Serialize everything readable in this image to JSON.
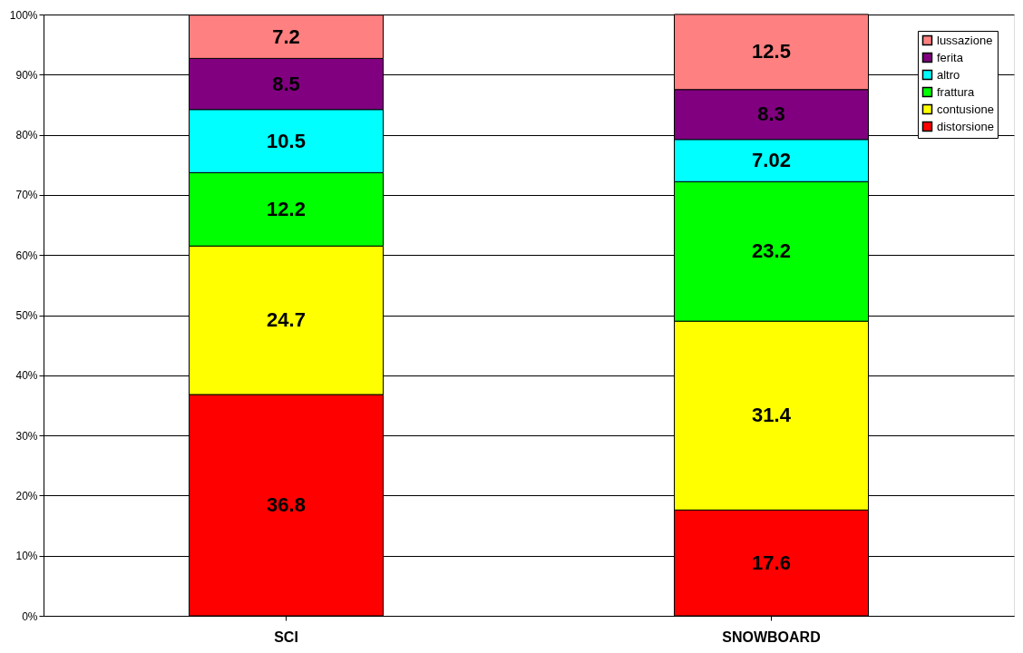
{
  "chart_data": {
    "type": "bar",
    "stacked": true,
    "categories": [
      "SCI",
      "SNOWBOARD"
    ],
    "series": [
      {
        "name": "distorsione",
        "color": "#ff0000",
        "values": [
          36.8,
          17.6
        ]
      },
      {
        "name": "contusione",
        "color": "#ffff00",
        "values": [
          24.7,
          31.4
        ]
      },
      {
        "name": "frattura",
        "color": "#00ff00",
        "values": [
          12.2,
          23.2
        ]
      },
      {
        "name": "altro",
        "color": "#00ffff",
        "values": [
          10.5,
          7.02
        ]
      },
      {
        "name": "ferita",
        "color": "#800080",
        "values": [
          8.5,
          8.3
        ]
      },
      {
        "name": "lussazione",
        "color": "#ff8080",
        "values": [
          7.2,
          12.5
        ]
      }
    ],
    "ylim": [
      0,
      100
    ],
    "yticks": [
      {
        "value": 0,
        "label": "0%"
      },
      {
        "value": 10,
        "label": "10%"
      },
      {
        "value": 20,
        "label": "20%"
      },
      {
        "value": 30,
        "label": "30%"
      },
      {
        "value": 40,
        "label": "40%"
      },
      {
        "value": 50,
        "label": "50%"
      },
      {
        "value": 60,
        "label": "60%"
      },
      {
        "value": 70,
        "label": "70%"
      },
      {
        "value": 80,
        "label": "80%"
      },
      {
        "value": 90,
        "label": "90%"
      },
      {
        "value": 100,
        "label": "100%"
      }
    ],
    "grid": "y",
    "legend": "top right",
    "data_labels": true
  }
}
